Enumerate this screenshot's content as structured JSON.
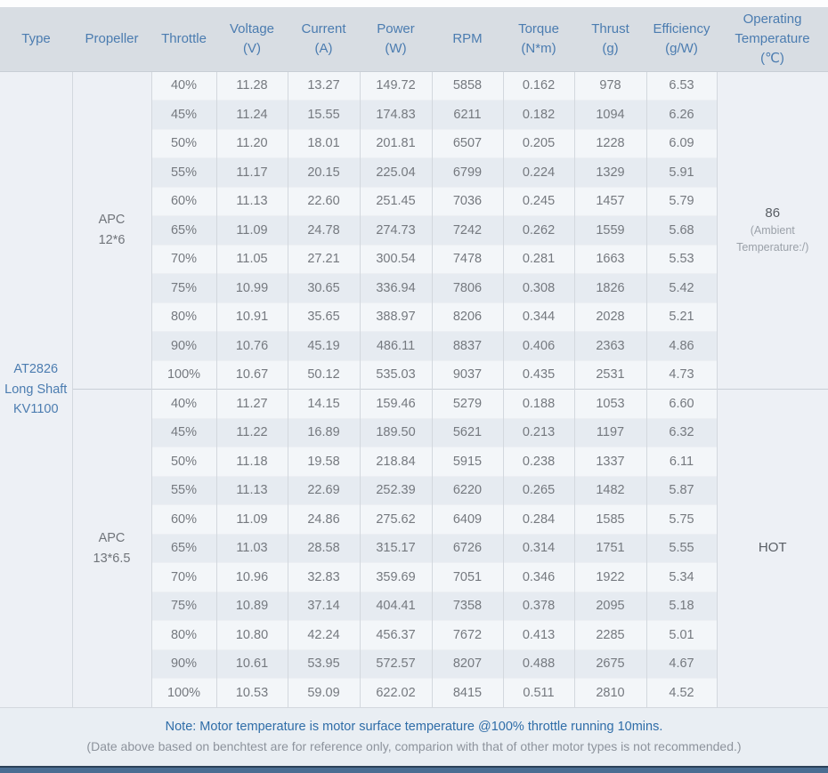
{
  "header": {
    "columns": [
      "Type",
      "Propeller",
      "Throttle",
      "Voltage\n(V)",
      "Current\n(A)",
      "Power\n(W)",
      "RPM",
      "Torque\n(N*m)",
      "Thrust\n(g)",
      "Efficiency\n(g/W)",
      "Operating\nTemperature\n(℃)"
    ]
  },
  "table": {
    "type": "AT2826\nLong Shaft\nKV1100",
    "groups": [
      {
        "propeller": "APC\n12*6",
        "temperature": {
          "main": "86",
          "sub": "(Ambient\nTemperature:/)"
        },
        "rows": [
          [
            "40%",
            "11.28",
            "13.27",
            "149.72",
            "5858",
            "0.162",
            "978",
            "6.53"
          ],
          [
            "45%",
            "11.24",
            "15.55",
            "174.83",
            "6211",
            "0.182",
            "1094",
            "6.26"
          ],
          [
            "50%",
            "11.20",
            "18.01",
            "201.81",
            "6507",
            "0.205",
            "1228",
            "6.09"
          ],
          [
            "55%",
            "11.17",
            "20.15",
            "225.04",
            "6799",
            "0.224",
            "1329",
            "5.91"
          ],
          [
            "60%",
            "11.13",
            "22.60",
            "251.45",
            "7036",
            "0.245",
            "1457",
            "5.79"
          ],
          [
            "65%",
            "11.09",
            "24.78",
            "274.73",
            "7242",
            "0.262",
            "1559",
            "5.68"
          ],
          [
            "70%",
            "11.05",
            "27.21",
            "300.54",
            "7478",
            "0.281",
            "1663",
            "5.53"
          ],
          [
            "75%",
            "10.99",
            "30.65",
            "336.94",
            "7806",
            "0.308",
            "1826",
            "5.42"
          ],
          [
            "80%",
            "10.91",
            "35.65",
            "388.97",
            "8206",
            "0.344",
            "2028",
            "5.21"
          ],
          [
            "90%",
            "10.76",
            "45.19",
            "486.11",
            "8837",
            "0.406",
            "2363",
            "4.86"
          ],
          [
            "100%",
            "10.67",
            "50.12",
            "535.03",
            "9037",
            "0.435",
            "2531",
            "4.73"
          ]
        ]
      },
      {
        "propeller": "APC\n13*6.5",
        "temperature": {
          "main": "HOT",
          "sub": ""
        },
        "rows": [
          [
            "40%",
            "11.27",
            "14.15",
            "159.46",
            "5279",
            "0.188",
            "1053",
            "6.60"
          ],
          [
            "45%",
            "11.22",
            "16.89",
            "189.50",
            "5621",
            "0.213",
            "1197",
            "6.32"
          ],
          [
            "50%",
            "11.18",
            "19.58",
            "218.84",
            "5915",
            "0.238",
            "1337",
            "6.11"
          ],
          [
            "55%",
            "11.13",
            "22.69",
            "252.39",
            "6220",
            "0.265",
            "1482",
            "5.87"
          ],
          [
            "60%",
            "11.09",
            "24.86",
            "275.62",
            "6409",
            "0.284",
            "1585",
            "5.75"
          ],
          [
            "65%",
            "11.03",
            "28.58",
            "315.17",
            "6726",
            "0.314",
            "1751",
            "5.55"
          ],
          [
            "70%",
            "10.96",
            "32.83",
            "359.69",
            "7051",
            "0.346",
            "1922",
            "5.34"
          ],
          [
            "75%",
            "10.89",
            "37.14",
            "404.41",
            "7358",
            "0.378",
            "2095",
            "5.18"
          ],
          [
            "80%",
            "10.80",
            "42.24",
            "456.37",
            "7672",
            "0.413",
            "2285",
            "5.01"
          ],
          [
            "90%",
            "10.61",
            "53.95",
            "572.57",
            "8207",
            "0.488",
            "2675",
            "4.67"
          ],
          [
            "100%",
            "10.53",
            "59.09",
            "622.02",
            "8415",
            "0.511",
            "2810",
            "4.52"
          ]
        ]
      }
    ]
  },
  "note": {
    "main": "Note: Motor temperature is motor surface temperature @100% throttle running 10mins.",
    "sub": "(Date above based on benchtest are for reference only, comparion with that of other motor types is not recommended.)"
  },
  "colors": {
    "header_bg": "#d8dde3",
    "header_text": "#4b7cb0",
    "row_light": "#f3f6f9",
    "row_dark": "#e6ebf1",
    "merged_cell_bg": "#edf0f5",
    "body_text": "#75797f",
    "note_bg": "#e9eef3",
    "note_text": "#2f6da8",
    "bottom_bar": "#4a6d92"
  }
}
